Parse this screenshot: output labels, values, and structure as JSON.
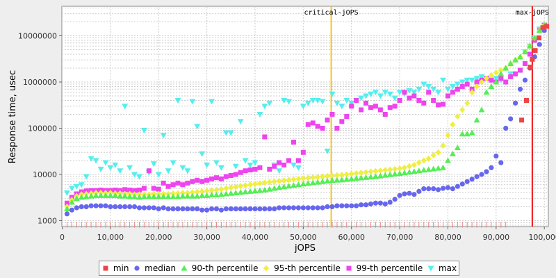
{
  "chart_data": {
    "type": "scatter",
    "xlabel": "jOPS",
    "ylabel": "Response time, usec",
    "xlim": [
      0,
      102000
    ],
    "ylim": [
      800,
      25000000
    ],
    "yscale": "log",
    "xticks": [
      0,
      10000,
      20000,
      30000,
      40000,
      50000,
      60000,
      70000,
      80000,
      90000,
      100000
    ],
    "xtick_labels": [
      "0",
      "10,000",
      "20,000",
      "30,000",
      "40,000",
      "50,000",
      "60,000",
      "70,000",
      "80,000",
      "90,000",
      "100,000"
    ],
    "yticks": [
      1000,
      10000,
      100000,
      1000000,
      10000000
    ],
    "ytick_labels": [
      "1000",
      "10000",
      "100000",
      "1000000",
      "10000000"
    ],
    "grid": true,
    "legend_position": "bottom",
    "vlines": [
      {
        "label": "critical-jOPS",
        "x": 55800,
        "color": "#f5c518"
      },
      {
        "label": "max-jOPS",
        "x": 97500,
        "color": "#ee1111"
      }
    ],
    "series": [
      {
        "name": "min",
        "color": "#ee4444",
        "marker": "square",
        "x": [
          95300,
          96300,
          97100,
          97500,
          98100,
          98900,
          99700,
          100500,
          101300,
          101800
        ],
        "y": [
          150000,
          400000,
          2100000,
          3100000,
          4800000,
          9000000,
          15000000,
          16000000,
          18000000,
          19000000
        ]
      },
      {
        "name": "median",
        "color": "#6666ee",
        "marker": "circle",
        "x": [
          1000,
          2000,
          3000,
          4000,
          5000,
          6000,
          7000,
          8000,
          9000,
          10000,
          11000,
          12000,
          13000,
          14000,
          15000,
          16000,
          17000,
          18000,
          19000,
          20000,
          21000,
          22000,
          23000,
          24000,
          25000,
          26000,
          27000,
          28000,
          29000,
          30000,
          31000,
          32000,
          33000,
          34000,
          35000,
          36000,
          37000,
          38000,
          39000,
          40000,
          41000,
          42000,
          43000,
          44000,
          45000,
          46000,
          47000,
          48000,
          49000,
          50000,
          51000,
          52000,
          53000,
          54000,
          55000,
          56000,
          57000,
          58000,
          59000,
          60000,
          61000,
          62000,
          63000,
          64000,
          65000,
          66000,
          67000,
          68000,
          69000,
          70000,
          71000,
          72000,
          73000,
          74000,
          75000,
          76000,
          77000,
          78000,
          79000,
          80000,
          81000,
          82000,
          83000,
          84000,
          85000,
          86000,
          87000,
          88000,
          89000,
          90000,
          91000,
          92000,
          93000,
          94000,
          95000,
          96000,
          97000,
          98000,
          99000,
          100000,
          101000,
          102000
        ],
        "y": [
          1400,
          1700,
          1900,
          2000,
          2000,
          2100,
          2100,
          2100,
          2100,
          2000,
          2000,
          2000,
          2000,
          2000,
          2000,
          1900,
          1900,
          1900,
          1900,
          1800,
          1900,
          1800,
          1800,
          1800,
          1800,
          1800,
          1800,
          1800,
          1700,
          1700,
          1800,
          1800,
          1700,
          1800,
          1800,
          1800,
          1800,
          1800,
          1800,
          1800,
          1800,
          1800,
          1800,
          1800,
          1900,
          1900,
          1900,
          1900,
          1900,
          1900,
          1900,
          1900,
          1900,
          1900,
          2000,
          2000,
          2100,
          2100,
          2100,
          2100,
          2100,
          2200,
          2200,
          2300,
          2400,
          2400,
          2300,
          2500,
          2900,
          3500,
          3800,
          3900,
          3700,
          4300,
          4900,
          4900,
          4900,
          4700,
          5000,
          5200,
          4900,
          5500,
          6200,
          7000,
          7900,
          9000,
          10000,
          11500,
          14000,
          25000,
          18000,
          100000,
          160000,
          350000,
          700000,
          1100000,
          2000000,
          3500000,
          6500000,
          13000000,
          17000000,
          18000000
        ]
      },
      {
        "name": "90-th percentile",
        "color": "#55ee55",
        "marker": "triangle-up",
        "x": [
          1000,
          2000,
          3000,
          4000,
          5000,
          6000,
          7000,
          8000,
          9000,
          10000,
          11000,
          12000,
          13000,
          14000,
          15000,
          16000,
          17000,
          18000,
          19000,
          20000,
          21000,
          22000,
          23000,
          24000,
          25000,
          26000,
          27000,
          28000,
          29000,
          30000,
          31000,
          32000,
          33000,
          34000,
          35000,
          36000,
          37000,
          38000,
          39000,
          40000,
          41000,
          42000,
          43000,
          44000,
          45000,
          46000,
          47000,
          48000,
          49000,
          50000,
          51000,
          52000,
          53000,
          54000,
          55000,
          56000,
          57000,
          58000,
          59000,
          60000,
          61000,
          62000,
          63000,
          64000,
          65000,
          66000,
          67000,
          68000,
          69000,
          70000,
          71000,
          72000,
          73000,
          74000,
          75000,
          76000,
          77000,
          78000,
          79000,
          80000,
          81000,
          82000,
          83000,
          84000,
          85000,
          86000,
          87000,
          88000,
          89000,
          90000,
          91000,
          92000,
          93000,
          94000,
          95000,
          96000,
          97000,
          98000,
          99000,
          100000,
          101000,
          102000
        ],
        "y": [
          1800,
          2500,
          3000,
          3200,
          3300,
          3400,
          3500,
          3500,
          3500,
          3500,
          3500,
          3400,
          3400,
          3300,
          3300,
          3200,
          3300,
          3300,
          3300,
          3300,
          3300,
          3300,
          3300,
          3300,
          3400,
          3400,
          3400,
          3400,
          3500,
          3500,
          3600,
          3600,
          3700,
          3800,
          3900,
          4000,
          4100,
          4200,
          4300,
          4400,
          4500,
          4600,
          4800,
          5000,
          5200,
          5400,
          5600,
          5800,
          6000,
          6200,
          6400,
          6600,
          6800,
          7000,
          7200,
          7400,
          7500,
          7600,
          7800,
          8000,
          8200,
          8400,
          8600,
          8800,
          9000,
          9300,
          9600,
          9900,
          10200,
          10500,
          10800,
          11200,
          11600,
          12000,
          12400,
          12800,
          13200,
          13600,
          14000,
          20000,
          28000,
          38000,
          75000,
          75000,
          80000,
          150000,
          250000,
          600000,
          800000,
          1000000,
          1500000,
          2000000,
          2500000,
          3000000,
          3500000,
          4500000,
          6000000,
          9000000,
          13000000,
          17000000,
          18000000,
          19000000
        ]
      },
      {
        "name": "95-th percentile",
        "color": "#eeee44",
        "marker": "diamond",
        "x": [
          1000,
          2000,
          3000,
          4000,
          5000,
          6000,
          7000,
          8000,
          9000,
          10000,
          11000,
          12000,
          13000,
          14000,
          15000,
          16000,
          17000,
          18000,
          19000,
          20000,
          21000,
          22000,
          23000,
          24000,
          25000,
          26000,
          27000,
          28000,
          29000,
          30000,
          31000,
          32000,
          33000,
          34000,
          35000,
          36000,
          37000,
          38000,
          39000,
          40000,
          41000,
          42000,
          43000,
          44000,
          45000,
          46000,
          47000,
          48000,
          49000,
          50000,
          51000,
          52000,
          53000,
          54000,
          55000,
          56000,
          57000,
          58000,
          59000,
          60000,
          61000,
          62000,
          63000,
          64000,
          65000,
          66000,
          67000,
          68000,
          69000,
          70000,
          71000,
          72000,
          73000,
          74000,
          75000,
          76000,
          77000,
          78000,
          79000,
          80000,
          81000,
          82000,
          83000,
          84000,
          85000,
          86000,
          87000,
          88000,
          89000,
          90000,
          91000,
          92000,
          93000,
          94000,
          95000,
          96000,
          97000,
          98000,
          99000,
          100000,
          101000,
          102000
        ],
        "y": [
          2000,
          2800,
          3400,
          3700,
          3800,
          3900,
          4000,
          4000,
          4000,
          4000,
          3900,
          3900,
          3800,
          3800,
          3700,
          3700,
          3700,
          3700,
          3800,
          3800,
          3800,
          3800,
          3900,
          3900,
          4000,
          4000,
          4100,
          4200,
          4300,
          4400,
          4500,
          4600,
          4800,
          5000,
          5200,
          5400,
          5600,
          5800,
          6000,
          6200,
          6400,
          6600,
          6800,
          7000,
          7200,
          7400,
          7600,
          7800,
          8000,
          8200,
          8400,
          8600,
          8800,
          9000,
          9200,
          9400,
          9600,
          9800,
          10000,
          10300,
          10600,
          10900,
          11200,
          11500,
          11800,
          12100,
          12400,
          12700,
          13000,
          13500,
          14000,
          15000,
          16000,
          18000,
          20000,
          22000,
          26000,
          30000,
          42000,
          70000,
          120000,
          180000,
          250000,
          350000,
          600000,
          800000,
          1000000,
          1200000,
          1400000,
          1600000,
          1800000,
          2000000,
          2500000,
          3000000,
          3500000,
          4500000,
          6000000,
          9000000,
          13000000,
          17000000,
          18000000,
          19000000
        ]
      },
      {
        "name": "99-th percentile",
        "color": "#ee44ee",
        "marker": "square",
        "x": [
          1000,
          2000,
          3000,
          4000,
          5000,
          6000,
          7000,
          8000,
          9000,
          10000,
          11000,
          12000,
          13000,
          14000,
          15000,
          16000,
          17000,
          18000,
          19000,
          20000,
          21000,
          22000,
          23000,
          24000,
          25000,
          26000,
          27000,
          28000,
          29000,
          30000,
          31000,
          32000,
          33000,
          34000,
          35000,
          36000,
          37000,
          38000,
          39000,
          40000,
          41000,
          42000,
          43000,
          44000,
          45000,
          46000,
          47000,
          48000,
          49000,
          50000,
          51000,
          52000,
          53000,
          54000,
          55000,
          56000,
          57000,
          58000,
          59000,
          60000,
          61000,
          62000,
          63000,
          64000,
          65000,
          66000,
          67000,
          68000,
          69000,
          70000,
          71000,
          72000,
          73000,
          74000,
          75000,
          76000,
          77000,
          78000,
          79000,
          80000,
          81000,
          82000,
          83000,
          84000,
          85000,
          86000,
          87000,
          88000,
          89000,
          90000,
          91000,
          92000,
          93000,
          94000,
          95000,
          96000,
          97000,
          98000,
          99000,
          100000,
          101000,
          102000
        ],
        "y": [
          2400,
          3200,
          3800,
          4200,
          4400,
          4500,
          4500,
          4600,
          4500,
          4500,
          4600,
          4500,
          4700,
          4600,
          4500,
          4600,
          5000,
          12000,
          5000,
          4800,
          6500,
          5500,
          6000,
          6500,
          6000,
          6500,
          7000,
          7500,
          7000,
          7500,
          8000,
          8500,
          8000,
          9000,
          9500,
          10000,
          11000,
          12000,
          12500,
          13000,
          14000,
          65000,
          13000,
          15000,
          18000,
          16000,
          20000,
          50000,
          20000,
          30000,
          120000,
          130000,
          110000,
          100000,
          150000,
          200000,
          100000,
          140000,
          180000,
          300000,
          400000,
          250000,
          350000,
          280000,
          300000,
          250000,
          200000,
          280000,
          300000,
          400000,
          600000,
          450000,
          500000,
          400000,
          350000,
          600000,
          400000,
          320000,
          330000,
          500000,
          600000,
          700000,
          800000,
          900000,
          700000,
          1000000,
          1100000,
          1200000,
          1100000,
          1000000,
          1200000,
          1000000,
          1300000,
          1500000,
          1800000,
          2500000,
          4000000,
          8000000,
          13000000,
          17000000,
          18000000,
          19000000
        ]
      },
      {
        "name": "max",
        "color": "#55eeee",
        "marker": "triangle-down",
        "x": [
          1000,
          2000,
          3000,
          4000,
          5000,
          6000,
          7000,
          8000,
          9000,
          10000,
          11000,
          12000,
          13000,
          14000,
          15000,
          16000,
          17000,
          18000,
          19000,
          20000,
          21000,
          22000,
          23000,
          24000,
          25000,
          26000,
          27000,
          28000,
          29000,
          30000,
          31000,
          32000,
          33000,
          34000,
          35000,
          36000,
          37000,
          38000,
          39000,
          40000,
          41000,
          42000,
          43000,
          44000,
          45000,
          46000,
          47000,
          48000,
          49000,
          50000,
          51000,
          52000,
          53000,
          54000,
          55000,
          56000,
          57000,
          58000,
          59000,
          60000,
          61000,
          62000,
          63000,
          64000,
          65000,
          66000,
          67000,
          68000,
          69000,
          70000,
          71000,
          72000,
          73000,
          74000,
          75000,
          76000,
          77000,
          78000,
          79000,
          80000,
          81000,
          82000,
          83000,
          84000,
          85000,
          86000,
          87000,
          88000,
          89000,
          90000,
          91000,
          92000,
          93000,
          94000,
          95000,
          96000,
          97000,
          98000,
          99000,
          100000,
          101000,
          102000
        ],
        "y": [
          4000,
          5000,
          5500,
          6000,
          9000,
          22000,
          20000,
          13000,
          18000,
          14000,
          16000,
          12000,
          300000,
          14000,
          10000,
          9000,
          90000,
          11000,
          17000,
          10000,
          70000,
          12000,
          18000,
          400000,
          14000,
          12000,
          380000,
          110000,
          28000,
          16000,
          380000,
          18000,
          14000,
          80000,
          80000,
          15000,
          140000,
          20000,
          16000,
          18000,
          200000,
          300000,
          350000,
          16000,
          12000,
          400000,
          380000,
          16000,
          14000,
          300000,
          350000,
          400000,
          400000,
          380000,
          32000,
          550000,
          350000,
          300000,
          400000,
          350000,
          400000,
          450000,
          500000,
          550000,
          600000,
          500000,
          600000,
          550000,
          450000,
          600000,
          550000,
          650000,
          600000,
          700000,
          900000,
          800000,
          700000,
          600000,
          1100000,
          700000,
          800000,
          900000,
          1000000,
          1100000,
          1100000,
          1200000,
          1300000,
          1200000,
          1100000,
          1200000,
          1100000,
          1000000,
          1500000,
          1500000,
          1800000,
          4500000,
          6000000,
          9000000,
          14000000,
          17000000,
          18000000,
          19000000
        ]
      }
    ]
  }
}
